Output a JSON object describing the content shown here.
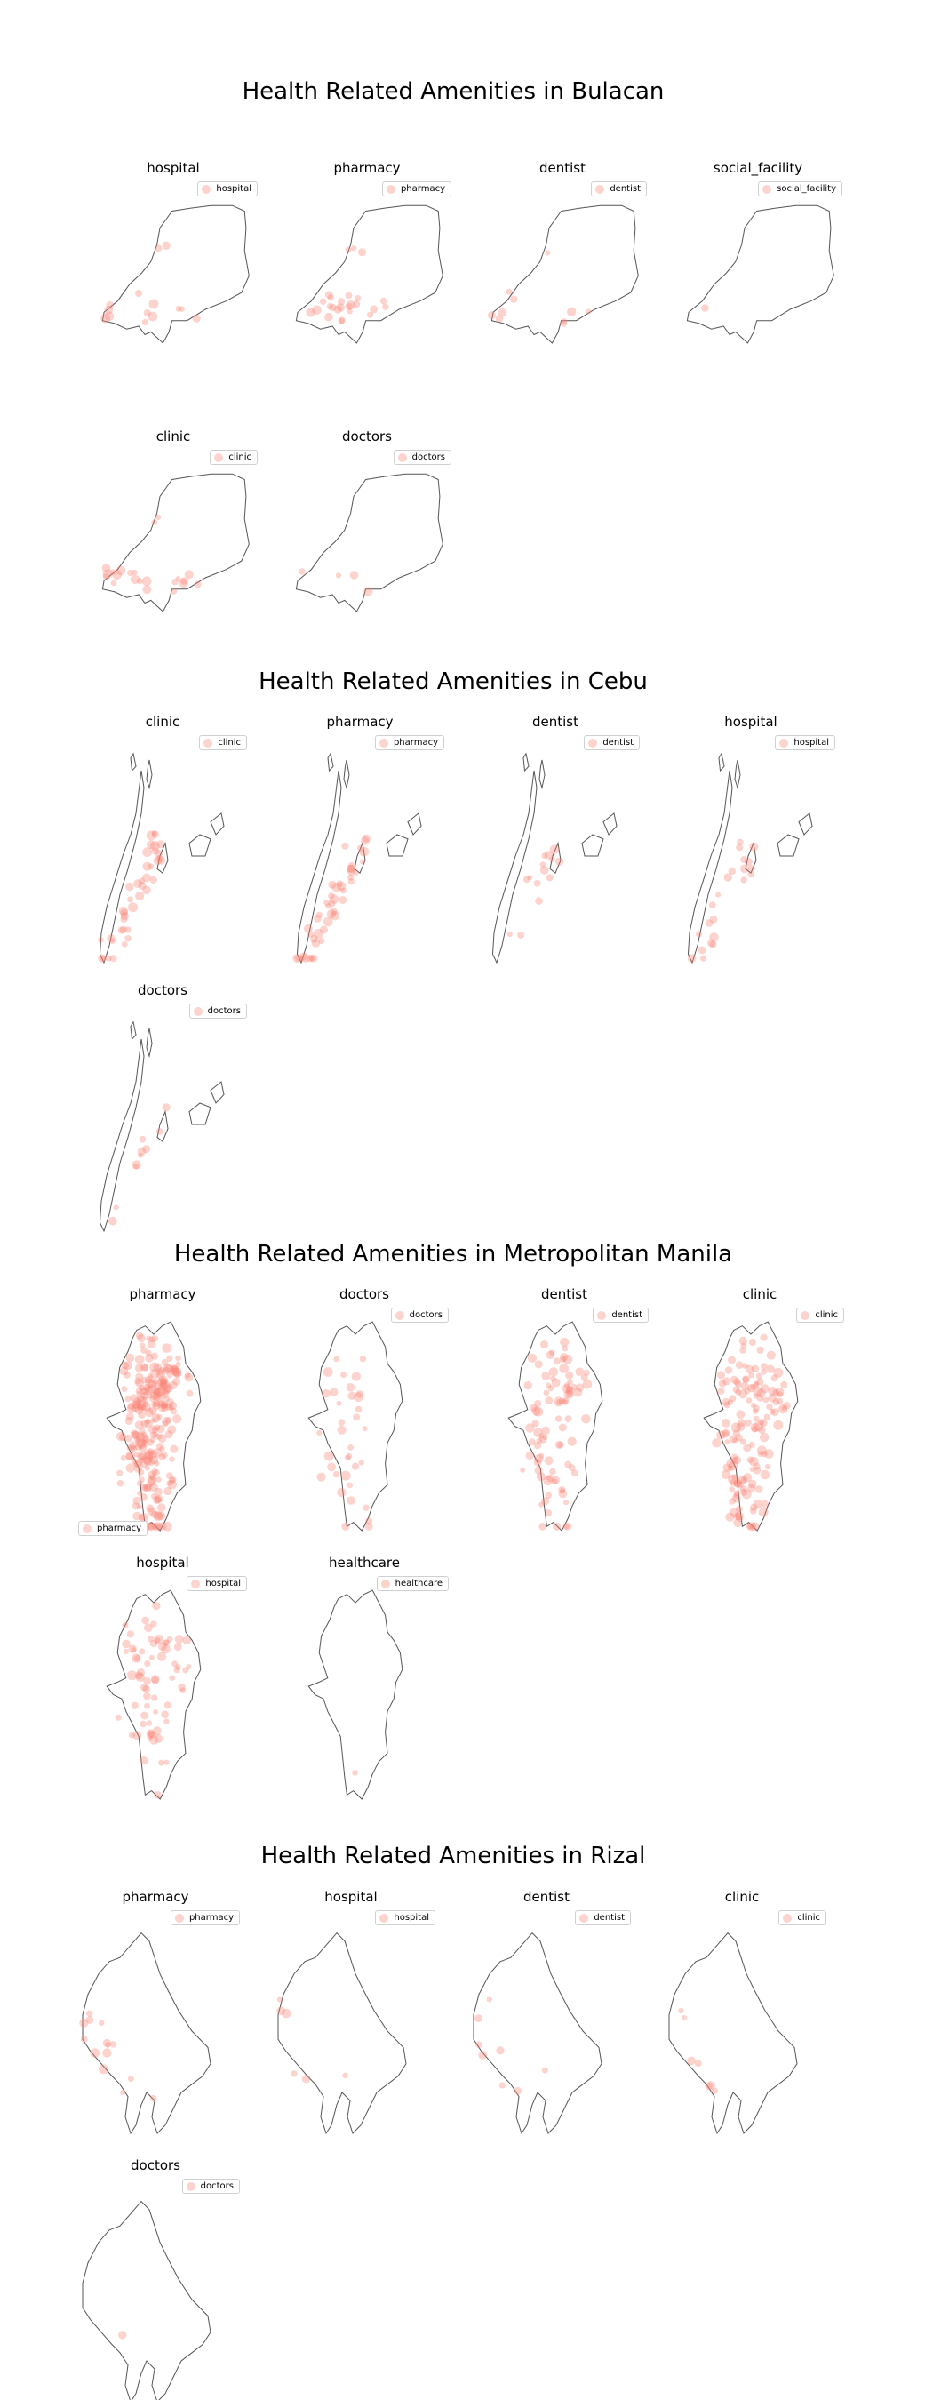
{
  "colors": {
    "point": "#fa8072",
    "outline": "#555555"
  },
  "sections": [
    {
      "title": "Health Related Amenities in Bulacan",
      "shape": "bulacan",
      "panels": [
        {
          "title": "hospital",
          "legend": "hospital"
        },
        {
          "title": "pharmacy",
          "legend": "pharmacy"
        },
        {
          "title": "dentist",
          "legend": "dentist"
        },
        {
          "title": "social_facility",
          "legend": "social_facility"
        },
        {
          "title": "clinic",
          "legend": "clinic"
        },
        {
          "title": "doctors",
          "legend": "doctors"
        }
      ]
    },
    {
      "title": "Health Related Amenities in Cebu",
      "shape": "cebu",
      "panels": [
        {
          "title": "clinic",
          "legend": "clinic"
        },
        {
          "title": "pharmacy",
          "legend": "pharmacy"
        },
        {
          "title": "dentist",
          "legend": "dentist"
        },
        {
          "title": "hospital",
          "legend": "hospital"
        },
        {
          "title": "doctors",
          "legend": "doctors"
        }
      ]
    },
    {
      "title": "Health Related Amenities in Metropolitan Manila",
      "shape": "manila",
      "panels": [
        {
          "title": "pharmacy",
          "legend": "pharmacy"
        },
        {
          "title": "doctors",
          "legend": "doctors"
        },
        {
          "title": "dentist",
          "legend": "dentist"
        },
        {
          "title": "clinic",
          "legend": "clinic"
        },
        {
          "title": "hospital",
          "legend": "hospital"
        },
        {
          "title": "healthcare",
          "legend": "healthcare"
        }
      ]
    },
    {
      "title": "Health Related Amenities in Rizal",
      "shape": "rizal",
      "panels": [
        {
          "title": "pharmacy",
          "legend": "pharmacy"
        },
        {
          "title": "hospital",
          "legend": "hospital"
        },
        {
          "title": "dentist",
          "legend": "dentist"
        },
        {
          "title": "clinic",
          "legend": "clinic"
        },
        {
          "title": "doctors",
          "legend": "doctors"
        }
      ]
    }
  ],
  "chart_data": {
    "type": "scatter",
    "note_units": "geographic point maps; approximate amenity counts per panel",
    "maps": [
      {
        "region": "Bulacan",
        "category": "hospital",
        "points": 14
      },
      {
        "region": "Bulacan",
        "category": "pharmacy",
        "points": 26
      },
      {
        "region": "Bulacan",
        "category": "dentist",
        "points": 10
      },
      {
        "region": "Bulacan",
        "category": "social_facility",
        "points": 1
      },
      {
        "region": "Bulacan",
        "category": "clinic",
        "points": 22
      },
      {
        "region": "Bulacan",
        "category": "doctors",
        "points": 4
      },
      {
        "region": "Cebu",
        "category": "clinic",
        "points": 40
      },
      {
        "region": "Cebu",
        "category": "pharmacy",
        "points": 45
      },
      {
        "region": "Cebu",
        "category": "dentist",
        "points": 14
      },
      {
        "region": "Cebu",
        "category": "hospital",
        "points": 22
      },
      {
        "region": "Cebu",
        "category": "doctors",
        "points": 10
      },
      {
        "region": "Metropolitan Manila",
        "category": "pharmacy",
        "points": 260
      },
      {
        "region": "Metropolitan Manila",
        "category": "doctors",
        "points": 35
      },
      {
        "region": "Metropolitan Manila",
        "category": "dentist",
        "points": 90
      },
      {
        "region": "Metropolitan Manila",
        "category": "clinic",
        "points": 150
      },
      {
        "region": "Metropolitan Manila",
        "category": "hospital",
        "points": 70
      },
      {
        "region": "Metropolitan Manila",
        "category": "healthcare",
        "points": 1
      },
      {
        "region": "Rizal",
        "category": "pharmacy",
        "points": 14
      },
      {
        "region": "Rizal",
        "category": "hospital",
        "points": 6
      },
      {
        "region": "Rizal",
        "category": "dentist",
        "points": 8
      },
      {
        "region": "Rizal",
        "category": "clinic",
        "points": 7
      },
      {
        "region": "Rizal",
        "category": "doctors",
        "points": 1
      }
    ]
  }
}
